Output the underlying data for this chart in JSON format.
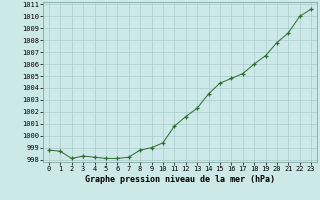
{
  "x": [
    0,
    1,
    2,
    3,
    4,
    5,
    6,
    7,
    8,
    9,
    10,
    11,
    12,
    13,
    14,
    15,
    16,
    17,
    18,
    19,
    20,
    21,
    22,
    23
  ],
  "y": [
    998.8,
    998.7,
    998.1,
    998.3,
    998.2,
    998.1,
    998.1,
    998.2,
    998.8,
    999.0,
    999.4,
    1000.8,
    1001.6,
    1002.3,
    1003.5,
    1004.4,
    1004.8,
    1005.2,
    1006.0,
    1006.7,
    1007.8,
    1008.6,
    1010.0,
    1010.6
  ],
  "bg_color": "#cce8e8",
  "line_color": "#2d6a2d",
  "marker_color": "#2d6a2d",
  "grid_major_color": "#aacccc",
  "grid_minor_color": "#bbdddd",
  "xlabel": "Graphe pression niveau de la mer (hPa)",
  "ylim": [
    997.8,
    1011.2
  ],
  "xlim": [
    -0.5,
    23.5
  ],
  "yticks": [
    998,
    999,
    1000,
    1001,
    1002,
    1003,
    1004,
    1005,
    1006,
    1007,
    1008,
    1009,
    1010,
    1011
  ],
  "xticks": [
    0,
    1,
    2,
    3,
    4,
    5,
    6,
    7,
    8,
    9,
    10,
    11,
    12,
    13,
    14,
    15,
    16,
    17,
    18,
    19,
    20,
    21,
    22,
    23
  ],
  "tick_fontsize": 5,
  "xlabel_fontsize": 6,
  "marker_size": 3.5,
  "linewidth": 0.7
}
